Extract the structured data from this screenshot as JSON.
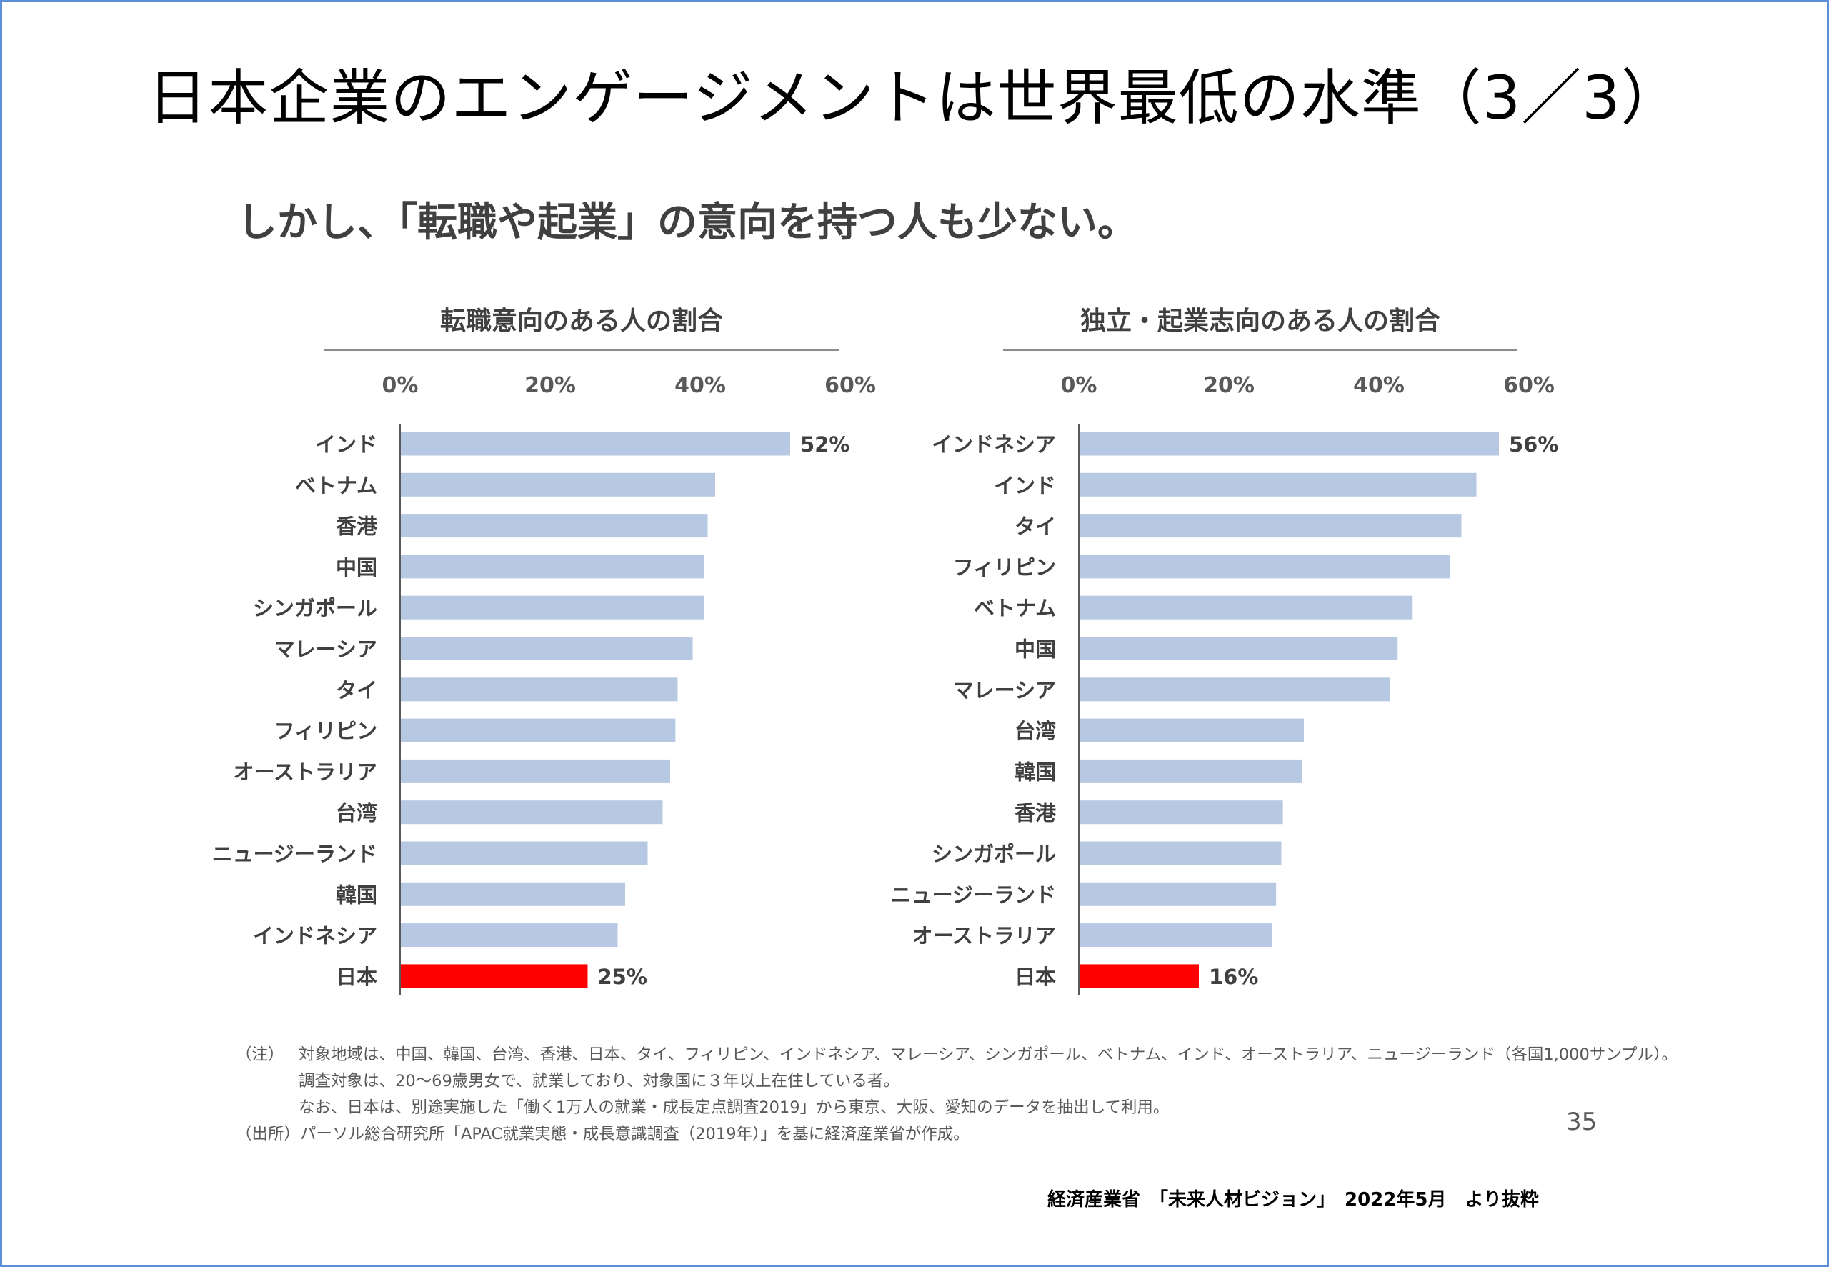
{
  "title": "日本企業のエンゲージメントは世界最低の水準（3／3）",
  "subtitle": "しかし、「転職や起業」の意向を持つ人も少ない。",
  "colors": {
    "bar": "#b7c9e2",
    "highlight": "#ff0000",
    "axis": "#595959",
    "frame": "#5b8fd6"
  },
  "chart_data": [
    {
      "type": "bar",
      "orientation": "horizontal",
      "title": "転職意向のある人の割合",
      "categories": [
        "インド",
        "ベトナム",
        "香港",
        "中国",
        "シンガポール",
        "マレーシア",
        "タイ",
        "フィリピン",
        "オーストラリア",
        "台湾",
        "ニュージーランド",
        "韓国",
        "インドネシア",
        "日本"
      ],
      "values": [
        52,
        42,
        41,
        40.5,
        40.5,
        39,
        37,
        36.7,
        36,
        35,
        33,
        30,
        29,
        25
      ],
      "value_labels": [
        "52%",
        "",
        "",
        "",
        "",
        "",
        "",
        "",
        "",
        "",
        "",
        "",
        "",
        "25%"
      ],
      "highlight": "日本",
      "xlim": [
        0,
        60
      ],
      "ticks": [
        "0%",
        "20%",
        "40%",
        "60%"
      ],
      "tick_values": [
        0,
        20,
        40,
        60
      ],
      "unit": "%",
      "xlabel": "",
      "ylabel": ""
    },
    {
      "type": "bar",
      "orientation": "horizontal",
      "title": "独立・起業志向のある人の割合",
      "categories": [
        "インドネシア",
        "インド",
        "タイ",
        "フィリピン",
        "ベトナム",
        "中国",
        "マレーシア",
        "台湾",
        "韓国",
        "香港",
        "シンガポール",
        "ニュージーランド",
        "オーストラリア",
        "日本"
      ],
      "values": [
        56,
        53,
        51,
        49.5,
        44.5,
        42.5,
        41.5,
        30,
        29.8,
        27.2,
        27,
        26.3,
        25.8,
        16
      ],
      "value_labels": [
        "56%",
        "",
        "",
        "",
        "",
        "",
        "",
        "",
        "",
        "",
        "",
        "",
        "",
        "16%"
      ],
      "highlight": "日本",
      "xlim": [
        0,
        60
      ],
      "ticks": [
        "0%",
        "20%",
        "40%",
        "60%"
      ],
      "tick_values": [
        0,
        20,
        40,
        60
      ],
      "unit": "%",
      "xlabel": "",
      "ylabel": ""
    }
  ],
  "notes": {
    "note_tag": "（注）",
    "note_lines": [
      "対象地域は、中国、韓国、台湾、香港、日本、タイ、フィリピン、インドネシア、マレーシア、シンガポール、ベトナム、インド、オーストラリア、ニュージーランド（各国1,000サンプル）。",
      "調査対象は、20～69歳男女で、就業しており、対象国に３年以上在住している者。",
      "なお、日本は、別途実施した「働く1万人の就業・成長定点調査2019」から東京、大阪、愛知のデータを抽出して利用。"
    ],
    "source_tag": "（出所）",
    "source_text": "パーソル総合研究所「APAC就業実態・成長意識調査（2019年）」を基に経済産業省が作成。"
  },
  "page_number": "35",
  "footer_credit": "経済産業省　「未来人材ビジョン」　2022年5月　より抜粋"
}
